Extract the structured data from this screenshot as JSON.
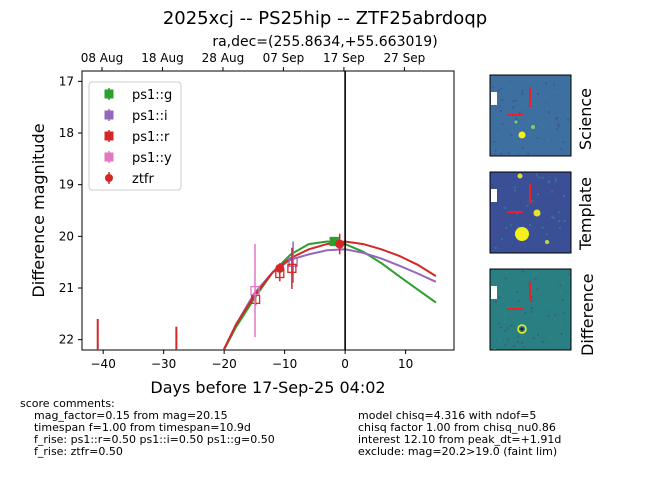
{
  "title": "2025xcj -- PS25hip -- ZTF25abrdoqp",
  "subtitle": "ra,dec=(255.8634,+55.663019)",
  "chart_data": {
    "type": "scatter",
    "xlabel": "Days before 17-Sep-25 04:02",
    "ylabel": "Difference magnitude",
    "xlim": [
      -43.5,
      18.0
    ],
    "ylim": [
      22.2,
      16.8
    ],
    "y_inverted": true,
    "grid": false,
    "legend_position": "top-left",
    "x_ticks": [
      -40,
      -30,
      -20,
      -10,
      0,
      10
    ],
    "x_tick_labels": [
      "−40",
      "−30",
      "−20",
      "−10",
      "0",
      "10"
    ],
    "y_ticks": [
      17,
      18,
      19,
      20,
      21,
      22
    ],
    "y_tick_labels": [
      "17",
      "18",
      "19",
      "20",
      "21",
      "22"
    ],
    "top_axis_ticks": [
      {
        "x": -40.2,
        "label": "08 Aug"
      },
      {
        "x": -30.2,
        "label": "18 Aug"
      },
      {
        "x": -20.2,
        "label": "28 Aug"
      },
      {
        "x": -10.2,
        "label": "07 Sep"
      },
      {
        "x": -0.2,
        "label": "17 Sep"
      },
      {
        "x": 9.8,
        "label": "27 Sep"
      }
    ],
    "vertical_line_x": 0,
    "series": [
      {
        "name": "ps1::g",
        "color": "#2ca02c",
        "marker": "square-filled",
        "points": [
          {
            "x": -1.8,
            "y": 20.1,
            "err": 0.05
          }
        ]
      },
      {
        "name": "ps1::i",
        "color": "#9467bd",
        "marker": "square-open",
        "points": [
          {
            "x": -8.6,
            "y": 20.5,
            "err": 0.4
          }
        ]
      },
      {
        "name": "ps1::r",
        "color": "#d62728",
        "marker": "square-open",
        "points": [
          {
            "x": -14.8,
            "y": 21.22,
            "err": 0.12
          },
          {
            "x": -10.8,
            "y": 20.72,
            "err": 0.15
          },
          {
            "x": -8.8,
            "y": 20.62,
            "err": 0.4
          }
        ]
      },
      {
        "name": "ps1::y",
        "color": "#e377c2",
        "marker": "square-open",
        "points": [
          {
            "x": -14.9,
            "y": 21.05,
            "err": 0.9
          }
        ]
      },
      {
        "name": "ztfr",
        "color": "#d62728",
        "marker": "circle-filled",
        "points": [
          {
            "x": -0.9,
            "y": 20.15,
            "err": 0.2
          },
          {
            "x": -10.8,
            "y": 20.62,
            "err": 0.1
          }
        ],
        "upper_limits": [
          {
            "x": -40.9,
            "y": 21.6
          },
          {
            "x": -27.9,
            "y": 21.75
          }
        ]
      }
    ],
    "model_curves": [
      {
        "color": "#2ca02c",
        "points": [
          [
            -20.5,
            22.3
          ],
          [
            -18,
            21.75
          ],
          [
            -15,
            21.2
          ],
          [
            -12,
            20.7
          ],
          [
            -9,
            20.35
          ],
          [
            -6,
            20.15
          ],
          [
            -3,
            20.1
          ],
          [
            -1,
            20.12
          ],
          [
            0,
            20.15
          ],
          [
            3,
            20.3
          ],
          [
            6,
            20.52
          ],
          [
            9,
            20.78
          ],
          [
            12,
            21.03
          ],
          [
            15,
            21.28
          ]
        ]
      },
      {
        "color": "#9467bd",
        "points": [
          [
            -20.5,
            22.3
          ],
          [
            -18,
            21.7
          ],
          [
            -15,
            21.1
          ],
          [
            -12,
            20.7
          ],
          [
            -9,
            20.45
          ],
          [
            -6,
            20.35
          ],
          [
            -3,
            20.27
          ],
          [
            0,
            20.25
          ],
          [
            3,
            20.32
          ],
          [
            6,
            20.43
          ],
          [
            9,
            20.57
          ],
          [
            12,
            20.72
          ],
          [
            15,
            20.88
          ]
        ]
      },
      {
        "color": "#d62728",
        "points": [
          [
            -20.5,
            22.3
          ],
          [
            -18,
            21.7
          ],
          [
            -15,
            21.15
          ],
          [
            -12,
            20.7
          ],
          [
            -9,
            20.42
          ],
          [
            -6,
            20.25
          ],
          [
            -3,
            20.15
          ],
          [
            0,
            20.1
          ],
          [
            3,
            20.15
          ],
          [
            6,
            20.25
          ],
          [
            9,
            20.38
          ],
          [
            12,
            20.55
          ],
          [
            15,
            20.77
          ]
        ]
      }
    ]
  },
  "stamps": [
    {
      "label": "Science",
      "bg": "#3d6fa0"
    },
    {
      "label": "Template",
      "bg": "#3a4f95"
    },
    {
      "label": "Difference",
      "bg": "#2a7f82"
    }
  ],
  "score_comments": "score comments:\n    mag_factor=0.15 from mag=20.15\n    timespan f=1.00 from timespan=10.9d\n    f_rise: ps1::r=0.50 ps1::i=0.50 ps1::g=0.50\n    f_rise: ztfr=0.50",
  "model_comments": "model chisq=4.316 with ndof=5\nchisq factor 1.00 from chisq_nu0.86\ninterest 12.10 from peak_dt=+1.91d\nexclude: mag=20.2>19.0 (faint lim)"
}
